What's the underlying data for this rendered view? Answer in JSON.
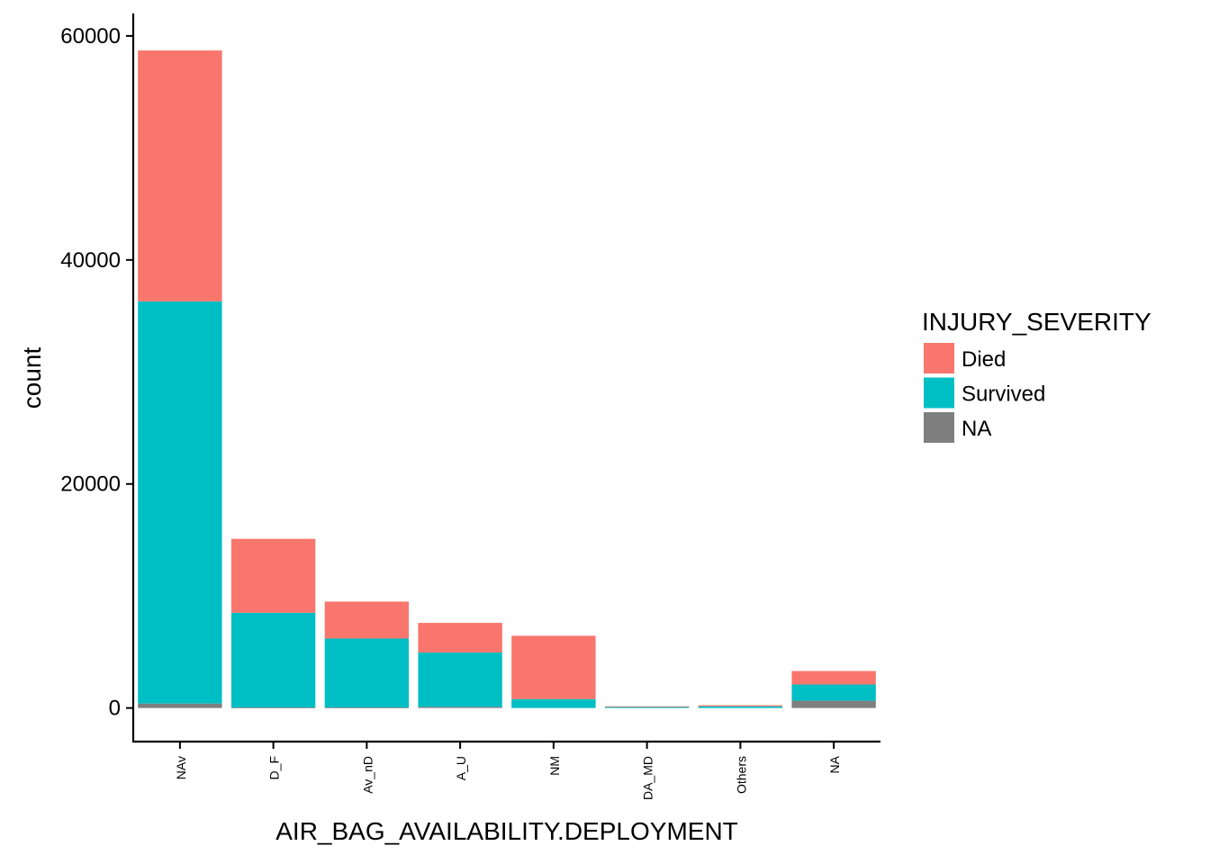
{
  "chart_data": {
    "type": "bar",
    "stacked": true,
    "title": "",
    "xlabel": "AIR_BAG_AVAILABILITY.DEPLOYMENT",
    "ylabel": "count",
    "ylim": [
      -3000,
      62000
    ],
    "yticks": [
      0,
      20000,
      40000,
      60000
    ],
    "grid": false,
    "legend_title": "INJURY_SEVERITY",
    "legend_position": "right",
    "categories": [
      "NAv",
      "D_F",
      "Av_nD",
      "A_U",
      "NM",
      "DA_MD",
      "Others",
      "NA"
    ],
    "series": [
      {
        "name": "NA",
        "color": "#7f7f7f",
        "values": [
          400,
          50,
          50,
          100,
          0,
          0,
          0,
          650
        ]
      },
      {
        "name": "Survived",
        "color": "#00bfc4",
        "values": [
          35900,
          8450,
          6150,
          4850,
          800,
          100,
          150,
          1450
        ]
      },
      {
        "name": "Died",
        "color": "#f8766d",
        "values": [
          22400,
          6600,
          3300,
          2650,
          5650,
          50,
          100,
          1200
        ]
      }
    ],
    "legend_order": [
      "Died",
      "Survived",
      "NA"
    ]
  }
}
